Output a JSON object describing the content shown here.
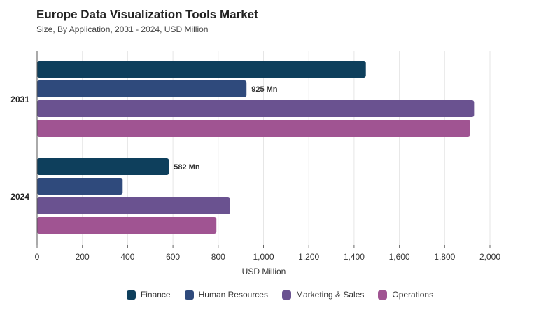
{
  "chart_data": {
    "type": "bar",
    "orientation": "horizontal",
    "title": "Europe Data Visualization Tools Market",
    "subtitle": "Size, By Application, 2031 - 2024, USD Million",
    "xlabel": "USD Million",
    "ylabel": "",
    "xlim": [
      0,
      2000
    ],
    "xticks": [
      "0",
      "200",
      "400",
      "600",
      "800",
      "1,000",
      "1,200",
      "1,400",
      "1,600",
      "1,800",
      "2,000"
    ],
    "categories": [
      "2031",
      "2024"
    ],
    "series": [
      {
        "name": "Finance",
        "color": "#0e3f5c",
        "values": [
          1452,
          582
        ],
        "labels": [
          "",
          "582 Mn"
        ]
      },
      {
        "name": "Human Resources",
        "color": "#2f4a7c",
        "values": [
          925,
          378
        ],
        "labels": [
          "925 Mn",
          ""
        ]
      },
      {
        "name": "Marketing & Sales",
        "color": "#6a5290",
        "values": [
          1930,
          852
        ],
        "labels": [
          "",
          ""
        ]
      },
      {
        "name": "Operations",
        "color": "#a05492",
        "values": [
          1912,
          792
        ],
        "labels": [
          "",
          ""
        ]
      }
    ],
    "grid": true,
    "legend_position": "bottom"
  }
}
